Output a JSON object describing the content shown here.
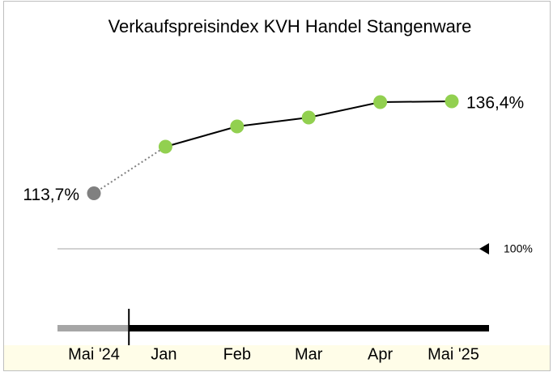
{
  "chart_data": {
    "type": "line",
    "title": "Verkaufspreisindex KVH Handel Stangenware",
    "categories": [
      "Mai '24",
      "Jan",
      "Feb",
      "Mar",
      "Apr",
      "Mai '25"
    ],
    "values": [
      113.7,
      125.2,
      130.2,
      132.4,
      136.2,
      136.4
    ],
    "value_labels": [
      "113,7%",
      null,
      null,
      null,
      null,
      "136,4%"
    ],
    "color": "#92d050",
    "line_color": "#000000",
    "first_color": "#808080",
    "reference": {
      "value": 100,
      "label": "100%"
    }
  }
}
